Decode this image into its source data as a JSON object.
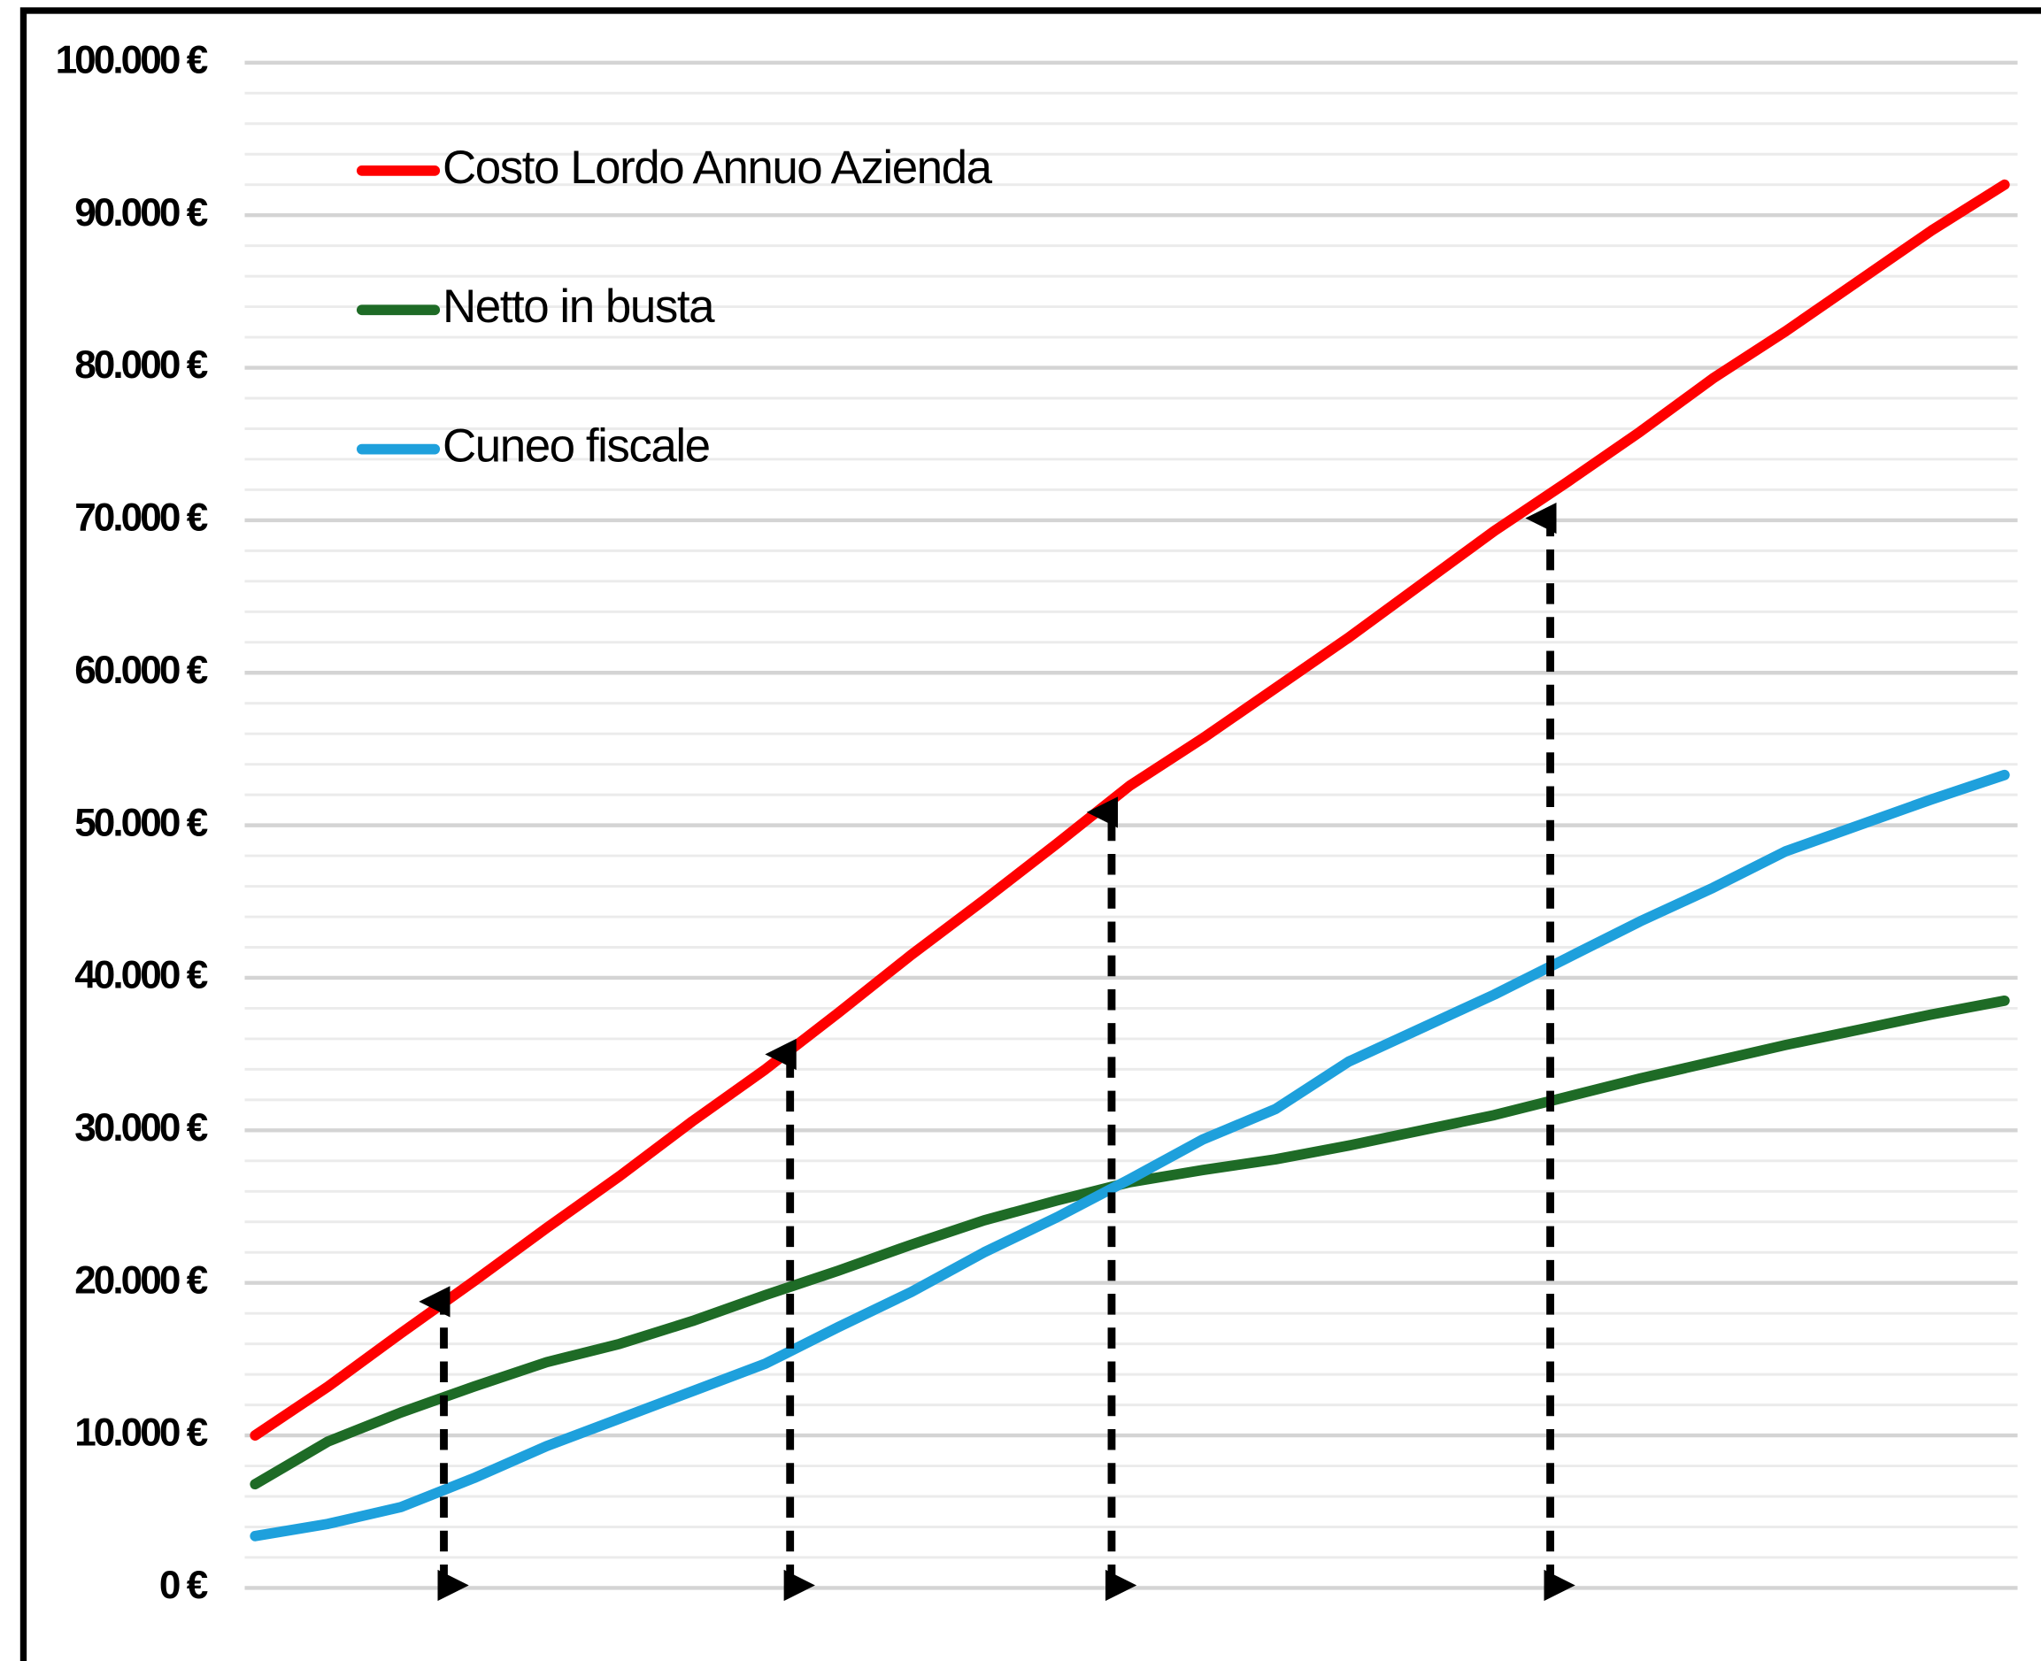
{
  "chart_data": {
    "type": "line",
    "categories": [
      null,
      null,
      null,
      null,
      null,
      null,
      null,
      null,
      null,
      null,
      null,
      null,
      null,
      null,
      null,
      null,
      null,
      null,
      null,
      null,
      null,
      null,
      null,
      null,
      null
    ],
    "series": [
      {
        "name": "Costo Lordo Annuo Azienda",
        "color": "#ff0000",
        "values": [
          10000,
          13200,
          16700,
          20100,
          23600,
          27000,
          30600,
          34000,
          37700,
          41500,
          45100,
          48800,
          52600,
          55700,
          59000,
          62300,
          65800,
          69300,
          72500,
          75800,
          79300,
          82400,
          85700,
          89000,
          92000
        ]
      },
      {
        "name": "Netto in busta",
        "color": "#1e6b26",
        "values": [
          6800,
          9600,
          11500,
          13200,
          14800,
          16000,
          17500,
          19200,
          20800,
          22500,
          24100,
          25400,
          26600,
          27400,
          28100,
          29000,
          30000,
          31000,
          32200,
          33400,
          34500,
          35600,
          36600,
          37600,
          38500
        ]
      },
      {
        "name": "Cuneo fiscale",
        "color": "#1ea0dc",
        "values": [
          3400,
          4200,
          5300,
          7200,
          9300,
          11100,
          12900,
          14700,
          17100,
          19400,
          22000,
          24300,
          26800,
          29400,
          31400,
          34500,
          36700,
          38900,
          41300,
          43700,
          45900,
          48300,
          50000,
          51700,
          53300
        ]
      }
    ],
    "ylim": [
      0,
      100000
    ],
    "yticks": [
      {
        "value": 0,
        "label": "0 €"
      },
      {
        "value": 10000,
        "label": "10.000 €"
      },
      {
        "value": 20000,
        "label": "20.000 €"
      },
      {
        "value": 30000,
        "label": "30.000 €"
      },
      {
        "value": 40000,
        "label": "40.000 €"
      },
      {
        "value": 50000,
        "label": "50.000 €"
      },
      {
        "value": 60000,
        "label": "60.000 €"
      },
      {
        "value": 70000,
        "label": "70.000 €"
      },
      {
        "value": 80000,
        "label": "80.000 €"
      },
      {
        "value": 90000,
        "label": "90.000 €"
      },
      {
        "value": 100000,
        "label": "100.000 €"
      }
    ],
    "minor_yticks": [
      2000,
      4000,
      6000,
      8000,
      12000,
      14000,
      16000,
      18000,
      22000,
      24000,
      26000,
      28000,
      32000,
      34000,
      36000,
      38000,
      42000,
      44000,
      46000,
      48000,
      52000,
      54000,
      56000,
      58000,
      62000,
      64000,
      66000,
      68000,
      72000,
      74000,
      76000,
      78000,
      82000,
      84000,
      86000,
      88000,
      92000,
      94000,
      96000,
      98000
    ],
    "grid": true,
    "legend": "upper left"
  }
}
